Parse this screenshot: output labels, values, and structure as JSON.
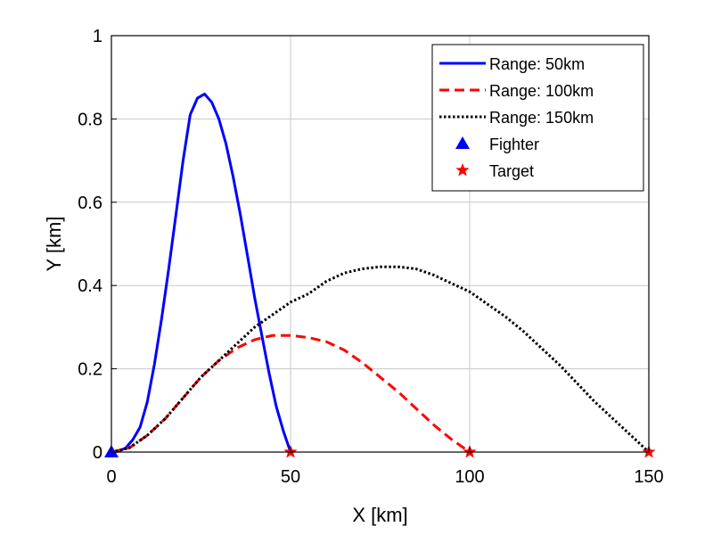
{
  "chart_data": {
    "type": "line",
    "title": "",
    "xlabel": "X [km]",
    "ylabel": "Y [km]",
    "xlim": [
      0,
      150
    ],
    "ylim": [
      0,
      1
    ],
    "x_ticks": [
      0,
      50,
      100,
      150
    ],
    "y_ticks": [
      0,
      0.2,
      0.4,
      0.6,
      0.8,
      1
    ],
    "y_tick_labels": [
      "0",
      "0.2",
      "0.4",
      "0.6",
      "0.8",
      "1"
    ],
    "grid": true,
    "legend_position": "top-right",
    "series": [
      {
        "name": "Range: 50km",
        "color": "#0000ff",
        "style": "solid",
        "x": [
          0,
          2,
          4,
          6,
          8,
          10,
          12,
          14,
          16,
          18,
          20,
          22,
          24,
          26,
          28,
          30,
          32,
          34,
          36,
          38,
          40,
          42,
          44,
          46,
          48,
          50
        ],
        "y": [
          0,
          0.002,
          0.01,
          0.03,
          0.06,
          0.12,
          0.21,
          0.32,
          0.44,
          0.57,
          0.7,
          0.81,
          0.85,
          0.86,
          0.84,
          0.8,
          0.74,
          0.66,
          0.57,
          0.47,
          0.37,
          0.28,
          0.19,
          0.11,
          0.05,
          0
        ]
      },
      {
        "name": "Range: 100km",
        "color": "#ff0000",
        "style": "dashed",
        "x": [
          0,
          5,
          10,
          15,
          20,
          25,
          30,
          35,
          40,
          45,
          50,
          55,
          60,
          65,
          70,
          75,
          80,
          85,
          90,
          95,
          100
        ],
        "y": [
          0,
          0.01,
          0.04,
          0.08,
          0.13,
          0.18,
          0.22,
          0.25,
          0.27,
          0.28,
          0.28,
          0.275,
          0.265,
          0.245,
          0.215,
          0.18,
          0.145,
          0.105,
          0.065,
          0.03,
          0
        ]
      },
      {
        "name": "Range: 150km",
        "color": "#000000",
        "style": "dotted",
        "x": [
          0,
          5,
          10,
          15,
          20,
          25,
          30,
          35,
          40,
          45,
          50,
          55,
          60,
          65,
          70,
          75,
          80,
          85,
          90,
          95,
          100,
          105,
          110,
          115,
          120,
          125,
          130,
          135,
          140,
          145,
          150
        ],
        "y": [
          0,
          0.01,
          0.04,
          0.08,
          0.13,
          0.18,
          0.22,
          0.26,
          0.3,
          0.33,
          0.36,
          0.38,
          0.41,
          0.43,
          0.44,
          0.445,
          0.445,
          0.44,
          0.425,
          0.405,
          0.385,
          0.355,
          0.325,
          0.29,
          0.25,
          0.21,
          0.165,
          0.12,
          0.08,
          0.04,
          0
        ]
      }
    ],
    "markers": [
      {
        "name": "Fighter",
        "shape": "triangle",
        "color": "#0000ff",
        "points": [
          {
            "x": 0,
            "y": 0
          }
        ]
      },
      {
        "name": "Target",
        "shape": "star",
        "color": "#ff0000",
        "points": [
          {
            "x": 50,
            "y": 0
          },
          {
            "x": 100,
            "y": 0
          },
          {
            "x": 150,
            "y": 0
          }
        ]
      }
    ]
  }
}
